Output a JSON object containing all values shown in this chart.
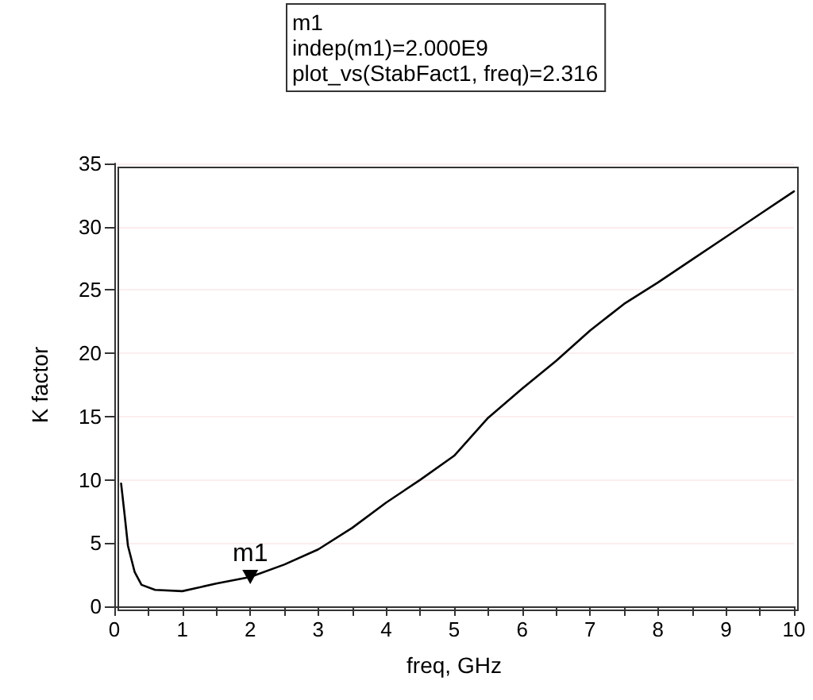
{
  "chart_data": {
    "type": "line",
    "xlabel": "freq, GHz",
    "ylabel": "K factor",
    "annotations": [
      "m1\nindep(m1)=2.000E9\nplot_vs(StabFact1, freq)=2.316",
      {
        "text": "m1",
        "x": 2,
        "y": 2.316
      }
    ],
    "x": [
      0.1,
      0.15,
      0.2,
      0.3,
      0.4,
      0.6,
      1,
      1.5,
      2,
      2.5,
      3,
      3.5,
      4,
      4.5,
      5,
      5.5,
      6,
      6.5,
      7,
      7.5,
      8,
      8.5,
      9,
      9.5,
      10
    ],
    "series": [
      {
        "color": "#000000",
        "values": [
          9.7,
          7.3,
          4.8,
          2.7,
          1.7,
          1.3,
          1.2,
          1.8,
          2.316,
          3.3,
          4.5,
          6.2,
          8.2,
          10.0,
          11.9,
          14.9,
          17.2,
          19.4,
          21.8,
          23.9,
          25.6,
          27.4,
          29.2,
          31.0,
          32.8
        ]
      }
    ],
    "xlim": [
      0,
      10
    ],
    "xticks": [
      0,
      {
        "value": 0.5,
        "label": null
      },
      1,
      {
        "value": 1.5,
        "label": null
      },
      2,
      {
        "value": 2.5,
        "label": null
      },
      3,
      {
        "value": 3.5,
        "label": null
      },
      4,
      {
        "value": 4.5,
        "label": null
      },
      5,
      {
        "value": 5.5,
        "label": null
      },
      6,
      {
        "value": 6.5,
        "label": null
      },
      7,
      {
        "value": 7.5,
        "label": null
      },
      8,
      {
        "value": 8.5,
        "label": null
      },
      9,
      {
        "value": 9.5,
        "label": null
      },
      10
    ],
    "ylim": [
      0,
      35
    ],
    "yticks": [
      0,
      5,
      10,
      15,
      20,
      25,
      30,
      35
    ],
    "grid": "y",
    "marker": "none",
    "line_style": "solid"
  }
}
